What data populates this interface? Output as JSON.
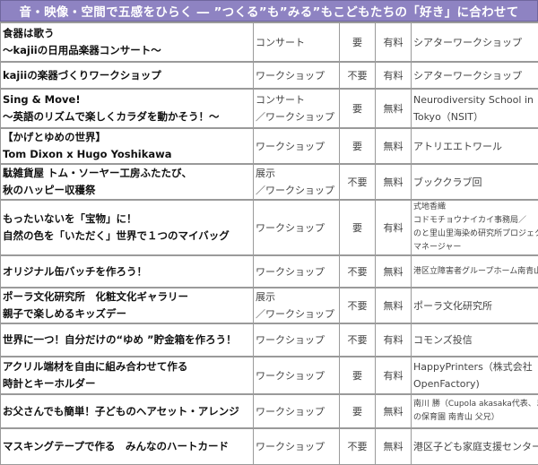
{
  "title": "音・映像・空間で五感をひらく ― ”つくる”も”みる”もこどもたちの「好き」に合わせて",
  "rows": [
    {
      "title": [
        "食器は歌う",
        "～kajiiの日用品楽器コンサート～"
      ],
      "type": [
        "コンサート"
      ],
      "reservation": "要",
      "fee": "有料",
      "organizer": [
        "シアターワークショップ"
      ]
    },
    {
      "title": [
        "kajiiの楽器づくりワークショップ"
      ],
      "type": [
        "ワークショップ"
      ],
      "reservation": "不要",
      "fee": "有料",
      "organizer": [
        "シアターワークショップ"
      ]
    },
    {
      "title": [
        "Sing & Move!",
        "～英語のリズムで楽しくカラダを動かそう！～"
      ],
      "type": [
        "コンサート",
        "／ワークショップ"
      ],
      "reservation": "要",
      "fee": "無料",
      "organizer": [
        "Neurodiversity School in",
        "Tokyo（NSIT）"
      ]
    },
    {
      "title": [
        "【かげとゆめの世界】",
        "Tom Dixon x Hugo Yoshikawa"
      ],
      "type": [
        "ワークショップ"
      ],
      "reservation": "要",
      "fee": "無料",
      "organizer": [
        "アトリエエトワール"
      ]
    },
    {
      "title": [
        "駄雑貨屋 トム・ソーヤー工房ふたたび、",
        "秋のハッピー収穫祭"
      ],
      "type": [
        "展示",
        "／ワークショップ"
      ],
      "reservation": "不要",
      "fee": "無料",
      "organizer": [
        "ブッククラブ回"
      ]
    },
    {
      "title": [
        "もったいないを「宝物」に！",
        "自然の色を「いただく」世界で１つのマイバッグ"
      ],
      "type": [
        "ワークショップ"
      ],
      "reservation": "要",
      "fee": "有料",
      "organizer": [
        "式地香織",
        "コドモチョウナイカイ事務局／",
        "のと里山里海染め研究所プロジェクト",
        "マネージャー"
      ]
    },
    {
      "title": [
        "オリジナル缶バッチを作ろう！"
      ],
      "type": [
        "ワークショップ"
      ],
      "reservation": "不要",
      "fee": "無料",
      "organizer": [
        "港区立障害者グループホーム南青山"
      ]
    },
    {
      "title": [
        "ポーラ文化研究所　化粧文化ギャラリー",
        "親子で楽しめるキッズデー"
      ],
      "type": [
        "展示",
        "／ワークショップ"
      ],
      "reservation": "不要",
      "fee": "無料",
      "organizer": [
        "ポーラ文化研究所"
      ]
    },
    {
      "title": [
        "世界に一つ！自分だけの“ゆめ ”貯金箱を作ろう！"
      ],
      "type": [
        "ワークショップ"
      ],
      "reservation": "不要",
      "fee": "有料",
      "organizer": [
        "コモンズ投信"
      ]
    },
    {
      "title": [
        "アクリル端材を自由に組み合わせて作る",
        "時計とキーホルダー"
      ],
      "type": [
        "ワークショップ"
      ],
      "reservation": "要",
      "fee": "有料",
      "organizer": [
        "HappyPrinters（株式会社",
        "OpenFactory)"
      ]
    },
    {
      "title": [
        "お父さんでも簡単！子どものヘアセット・アレンジ"
      ],
      "type": [
        "ワークショップ"
      ],
      "reservation": "要",
      "fee": "無料",
      "organizer": [
        "南川 勝（Cupola akasaka代表、まち",
        "の保育園 南青山 父兄）"
      ]
    },
    {
      "title": [
        "マスキングテープで作る　みんなのハートカード"
      ],
      "type": [
        "ワークショップ"
      ],
      "reservation": "不要",
      "fee": "無料",
      "organizer": [
        "港区子ども家庭支援センター"
      ]
    }
  ],
  "colors": {
    "header_bg": "#8e83c2",
    "header_text": "#ffffff",
    "border": "#9a9a9a"
  }
}
